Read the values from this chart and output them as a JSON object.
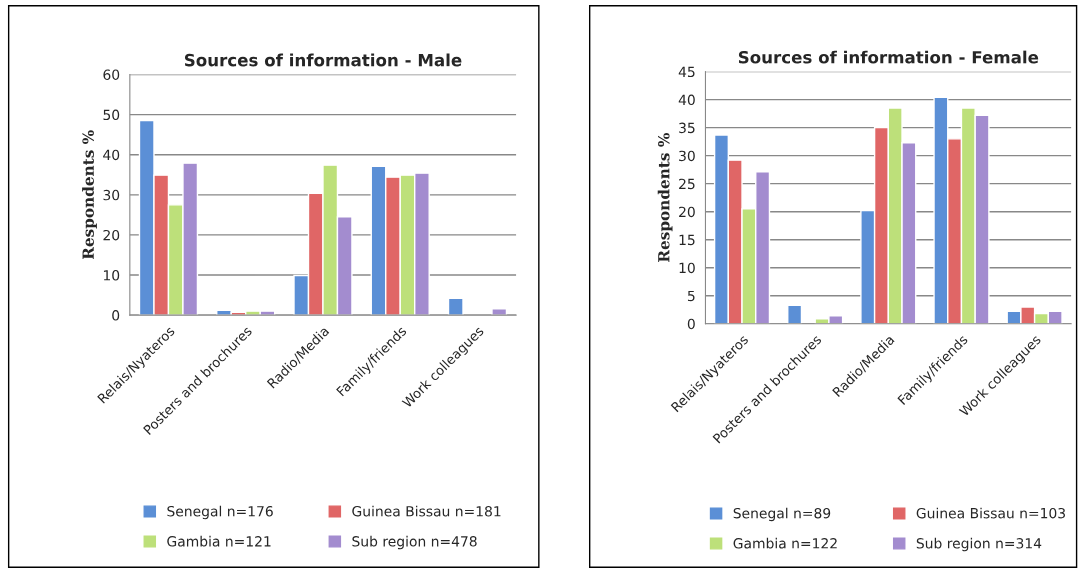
{
  "chart_data": [
    {
      "type": "bar",
      "title": "Sources of information - Male",
      "ylabel": "Respondents %",
      "categories": [
        "Relais/Nyateros",
        "Posters and brochures",
        "Radio/Media",
        "Family/friends",
        "Work colleagues"
      ],
      "series": [
        {
          "name": "Senegal n=176",
          "color": "#5b8fd6",
          "values": [
            48.5,
            1.2,
            9.9,
            37.1,
            4.2
          ]
        },
        {
          "name": "Guinea Bissau n=181",
          "color": "#e06666",
          "values": [
            34.9,
            0.7,
            30.4,
            34.4,
            null
          ]
        },
        {
          "name": "Gambia n=121",
          "color": "#bde07a",
          "values": [
            27.5,
            1.0,
            37.4,
            34.9,
            null
          ]
        },
        {
          "name": "Sub region n=478",
          "color": "#a38ccf",
          "values": [
            37.9,
            1.0,
            24.5,
            35.4,
            1.6
          ]
        }
      ],
      "ylim": [
        0,
        60
      ],
      "yticks": [
        0,
        10,
        20,
        30,
        40,
        50,
        60
      ],
      "grid": "y",
      "legend": "bottom"
    },
    {
      "type": "bar",
      "title": "Sources of information - Female",
      "ylabel": "Respondents %",
      "categories": [
        "Relais/Nyateros",
        "Posters and brochures",
        "Radio/Media",
        "Family/friends",
        "Work colleagues"
      ],
      "series": [
        {
          "name": "Senegal n=89",
          "color": "#5b8fd6",
          "values": [
            33.7,
            3.3,
            20.2,
            40.4,
            2.2
          ]
        },
        {
          "name": "Guinea Bissau n=103",
          "color": "#e06666",
          "values": [
            29.2,
            null,
            35.0,
            33.0,
            3.0
          ]
        },
        {
          "name": "Gambia n=122",
          "color": "#bde07a",
          "values": [
            20.5,
            0.9,
            38.5,
            38.5,
            1.8
          ]
        },
        {
          "name": "Sub region n=314",
          "color": "#a38ccf",
          "values": [
            27.1,
            1.4,
            32.3,
            37.2,
            2.2
          ]
        }
      ],
      "ylim": [
        0,
        45
      ],
      "yticks": [
        0,
        5,
        10,
        15,
        20,
        25,
        30,
        35,
        40,
        45
      ],
      "grid": "y",
      "legend": "bottom"
    }
  ]
}
